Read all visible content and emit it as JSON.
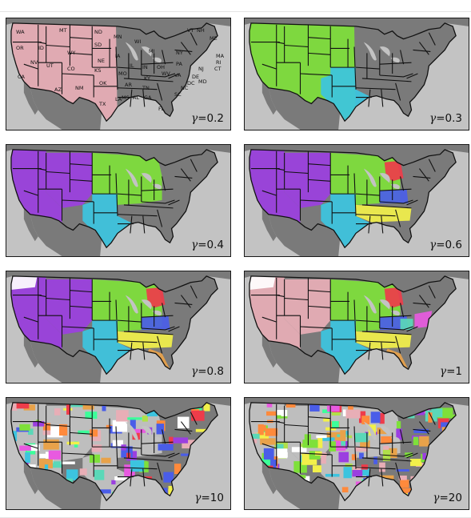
{
  "panels": [
    {
      "gamma_symbol": "γ",
      "gamma_value": "=0.2",
      "state_labels": [
        "WA",
        "OR",
        "ID",
        "MT",
        "ND",
        "SD",
        "MN",
        "WI",
        "MI",
        "VT",
        "NH",
        "ME",
        "MA",
        "RI",
        "CT",
        "NY",
        "NJ",
        "PA",
        "DE",
        "MD",
        "OH",
        "IN",
        "IL",
        "IA",
        "NE",
        "WY",
        "NV",
        "UT",
        "CO",
        "CA",
        "KS",
        "MO",
        "KY",
        "WV",
        "VA",
        "DC",
        "NC",
        "TN",
        "OK",
        "AR",
        "SC",
        "AZ",
        "NM",
        "TX",
        "MS",
        "AL",
        "GA",
        "LA",
        "FL"
      ]
    },
    {
      "gamma_symbol": "γ",
      "gamma_value": "=0.3"
    },
    {
      "gamma_symbol": "γ",
      "gamma_value": "=0.4"
    },
    {
      "gamma_symbol": "γ",
      "gamma_value": "=0.6"
    },
    {
      "gamma_symbol": "γ",
      "gamma_value": "=0.8"
    },
    {
      "gamma_symbol": "γ",
      "gamma_value": "=1"
    },
    {
      "gamma_symbol": "γ",
      "gamma_value": "=10"
    },
    {
      "gamma_symbol": "γ",
      "gamma_value": "=20"
    }
  ],
  "colors": {
    "land": "#7a7a7a",
    "ocean": "#c3c3c3",
    "border": "#111111",
    "pink": "#e8aeb6",
    "green": "#7ee03a",
    "cyan": "#3cc4df",
    "purple": "#9b3fe0",
    "red": "#ee3c4a",
    "blue": "#4a5de8",
    "yellow": "#f2f04a",
    "orange": "#e8a24a",
    "white": "#ffffff",
    "magenta": "#e85ae0",
    "teal": "#5ad8b8"
  }
}
